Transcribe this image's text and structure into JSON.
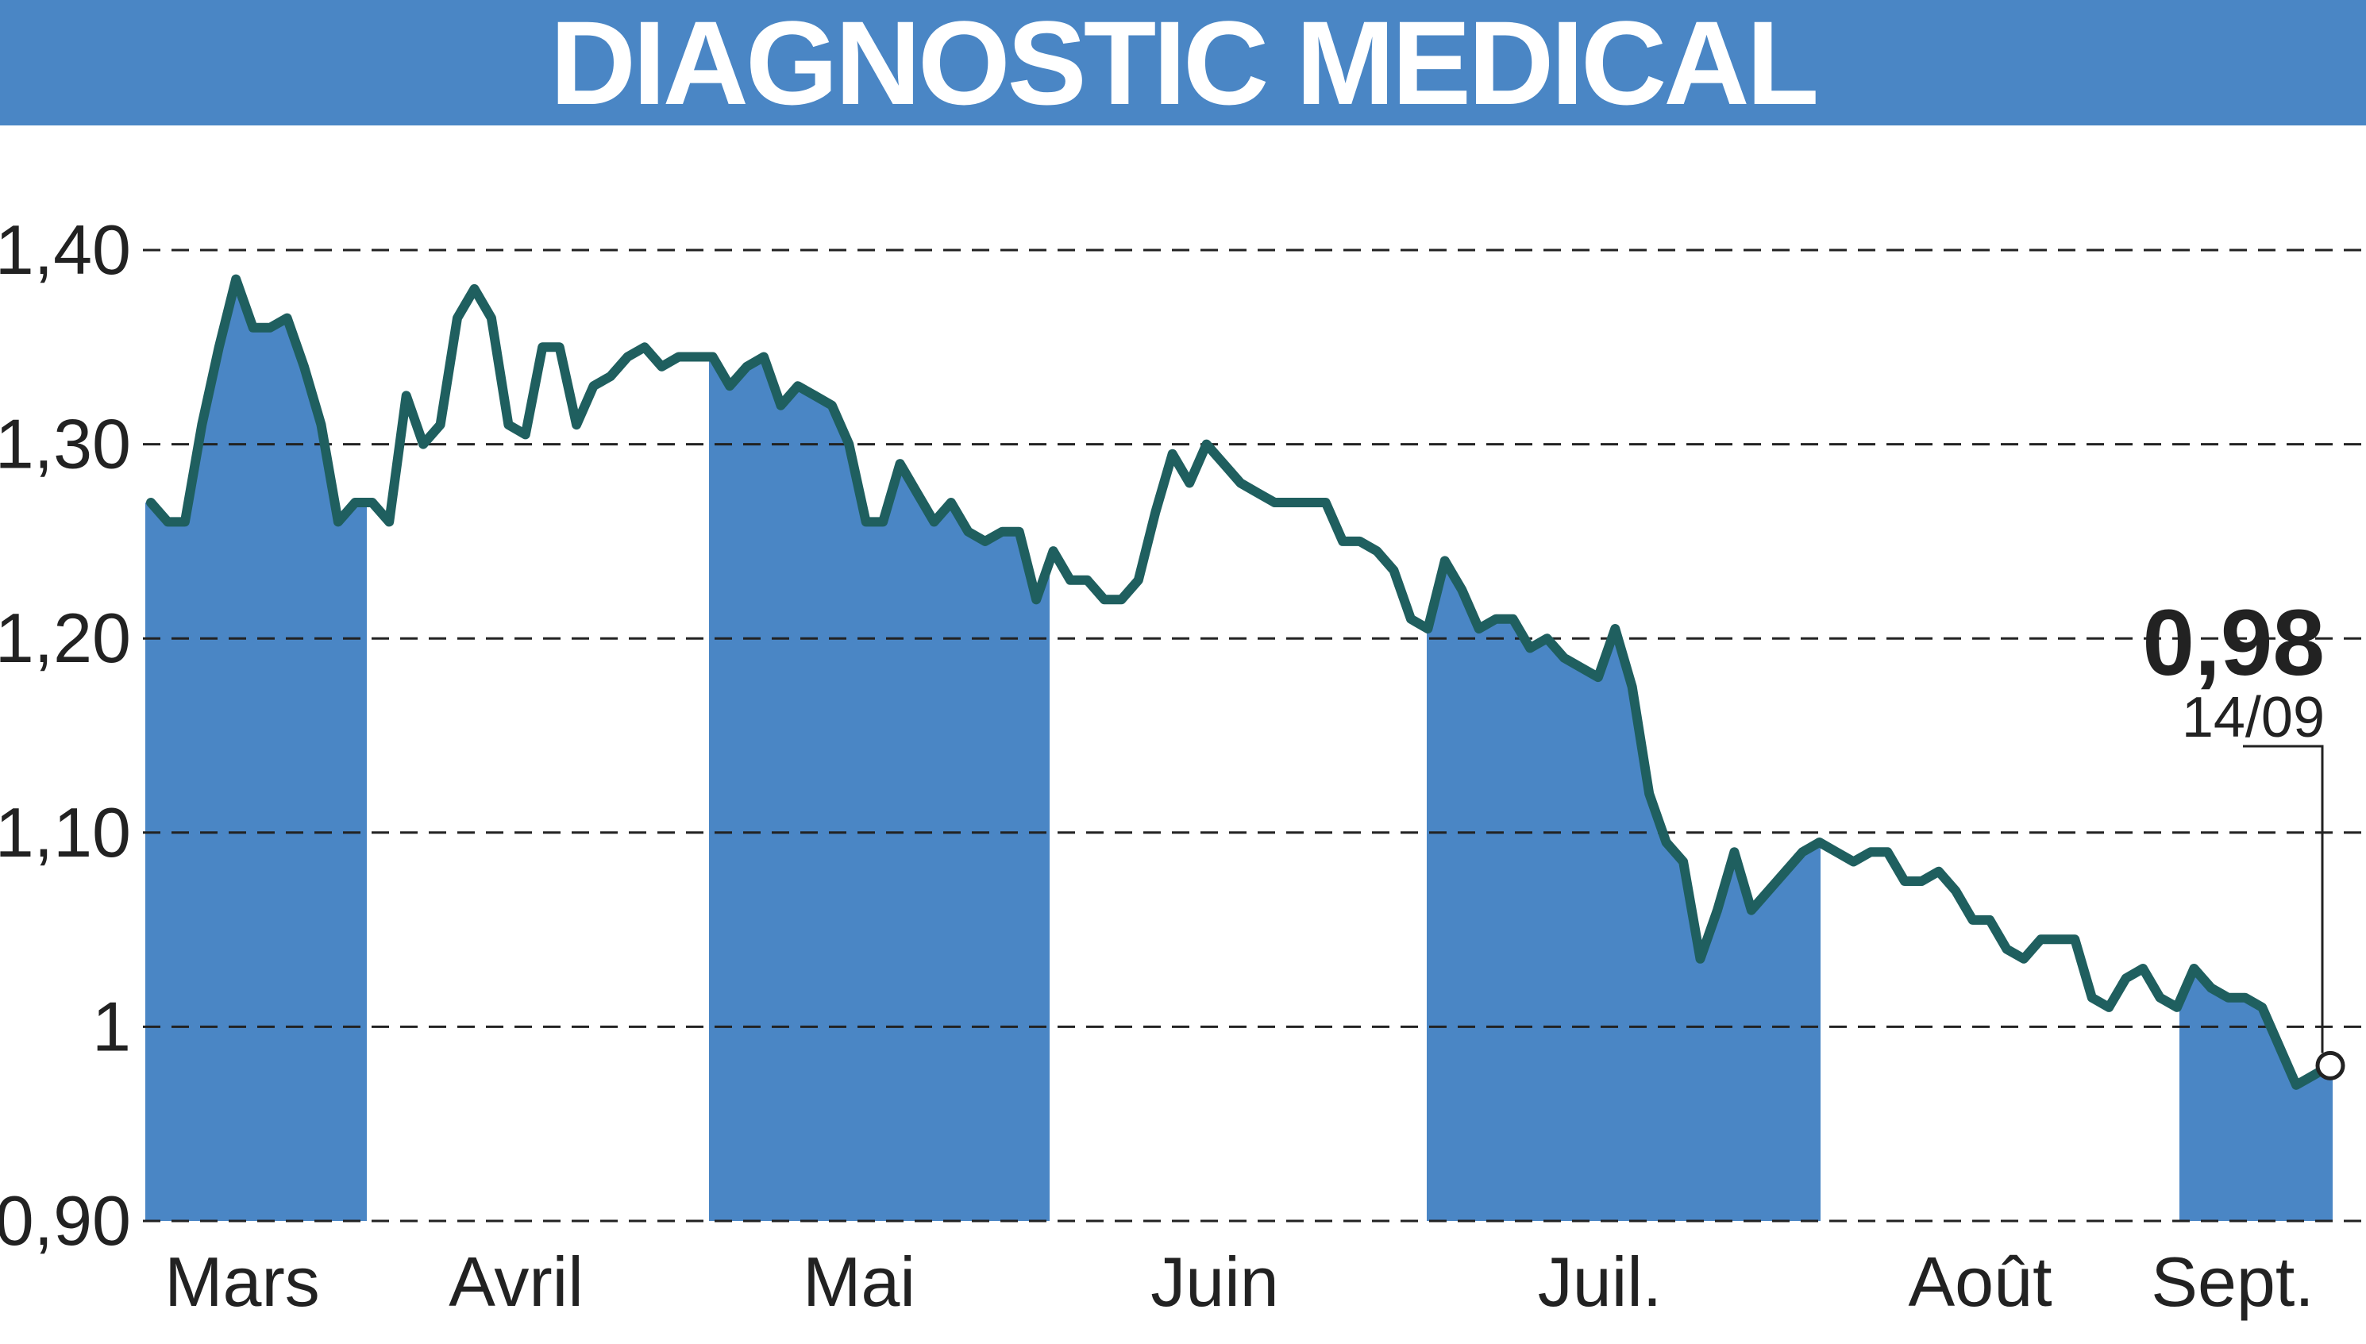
{
  "title": "DIAGNOSTIC MEDICAL",
  "colors": {
    "header": "#4a86c5",
    "band": "#4a86c5",
    "line": "#1f5f5f",
    "grid": "#222222"
  },
  "chart_data": {
    "type": "line",
    "title": "DIAGNOSTIC MEDICAL",
    "y_ticks": [
      "1,40",
      "1,30",
      "1,20",
      "1,10",
      "1",
      "0,90"
    ],
    "y_tick_values": [
      1.4,
      1.3,
      1.2,
      1.1,
      1.0,
      0.9
    ],
    "ylim": [
      0.9,
      1.4
    ],
    "grid": true,
    "months": [
      "Mars",
      "Avril",
      "Mai",
      "Juin",
      "Juil.",
      "Août",
      "Sept."
    ],
    "shaded_months": [
      "Mars",
      "Mai",
      "Juil.",
      "Sept."
    ],
    "last_value": "0,98",
    "last_date": "14/09",
    "series": [
      {
        "values": [
          1.27,
          1.26,
          1.26,
          1.31,
          1.35,
          1.385,
          1.36,
          1.36,
          1.365,
          1.34,
          1.31,
          1.26,
          1.27,
          1.27,
          1.26,
          1.325,
          1.3,
          1.31,
          1.365,
          1.38,
          1.365,
          1.31,
          1.305,
          1.35,
          1.35,
          1.31,
          1.33,
          1.335,
          1.345,
          1.35,
          1.34,
          1.345,
          1.345,
          1.345,
          1.33,
          1.34,
          1.345,
          1.32,
          1.33,
          1.325,
          1.32,
          1.3,
          1.26,
          1.26,
          1.29,
          1.275,
          1.26,
          1.27,
          1.255,
          1.25,
          1.255,
          1.255,
          1.22,
          1.245,
          1.23,
          1.23,
          1.22,
          1.22,
          1.23,
          1.265,
          1.295,
          1.28,
          1.3,
          1.29,
          1.28,
          1.275,
          1.27,
          1.27,
          1.27,
          1.27,
          1.25,
          1.25,
          1.245,
          1.235,
          1.21,
          1.205,
          1.24,
          1.225,
          1.205,
          1.21,
          1.21,
          1.195,
          1.2,
          1.19,
          1.185,
          1.18,
          1.205,
          1.175,
          1.12,
          1.095,
          1.085,
          1.035,
          1.06,
          1.09,
          1.06,
          1.07,
          1.08,
          1.09,
          1.095,
          1.09,
          1.085,
          1.09,
          1.09,
          1.075,
          1.075,
          1.08,
          1.07,
          1.055,
          1.055,
          1.04,
          1.035,
          1.045,
          1.045,
          1.045,
          1.015,
          1.01,
          1.025,
          1.03,
          1.015,
          1.01,
          1.03,
          1.02,
          1.015,
          1.015,
          1.01,
          0.99,
          0.97,
          0.975,
          0.98
        ]
      }
    ]
  }
}
